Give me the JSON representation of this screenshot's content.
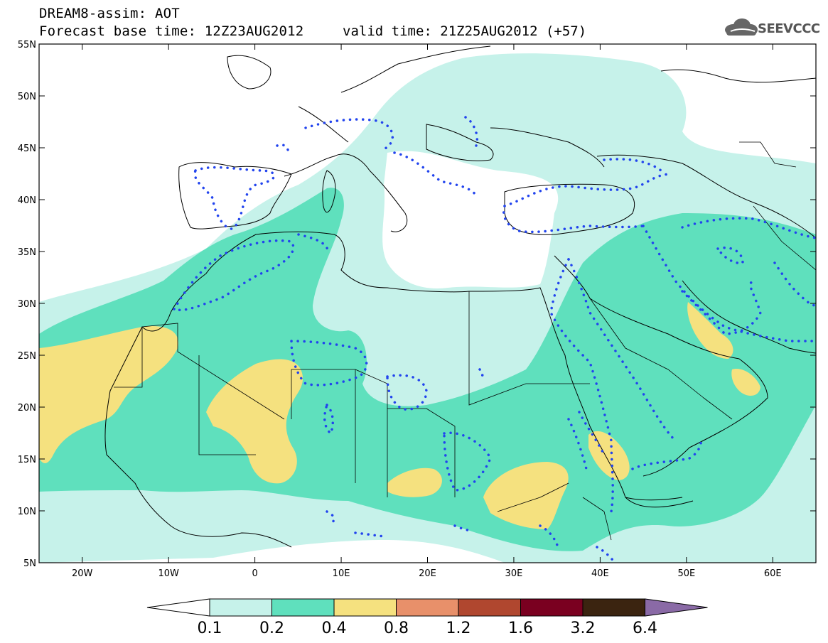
{
  "header": {
    "title": "DREAM8-assim: AOT",
    "base_time": "Forecast base time: 12Z23AUG2012",
    "valid_time": "valid time: 21Z25AUG2012 (+57)",
    "logo_text": "SEEVCCC"
  },
  "map": {
    "lon_range": [
      -25,
      65
    ],
    "lat_range": [
      5,
      55
    ],
    "lat_labels": [
      "5N",
      "10N",
      "15N",
      "20N",
      "25N",
      "30N",
      "35N",
      "40N",
      "45N",
      "50N",
      "55N"
    ],
    "lon_labels": [
      "20W",
      "10W",
      "0",
      "10E",
      "20E",
      "30E",
      "40E",
      "50E",
      "60E"
    ],
    "variable": "AOT"
  },
  "colorbar": {
    "labels": [
      "0.1",
      "0.2",
      "0.4",
      "0.8",
      "1.2",
      "1.6",
      "3.2",
      "6.4"
    ],
    "colors": [
      "#ffffff",
      "#c6f2ea",
      "#5fe0bd",
      "#f5e17f",
      "#e8906a",
      "#b0472f",
      "#7a0020",
      "#3b2410",
      "#8a6aa6"
    ]
  },
  "colors": {
    "level1": "#c6f2ea",
    "level2": "#5fe0bd",
    "level3": "#f5e17f",
    "dotted_contour": "#2244ee",
    "coast": "#000000"
  }
}
